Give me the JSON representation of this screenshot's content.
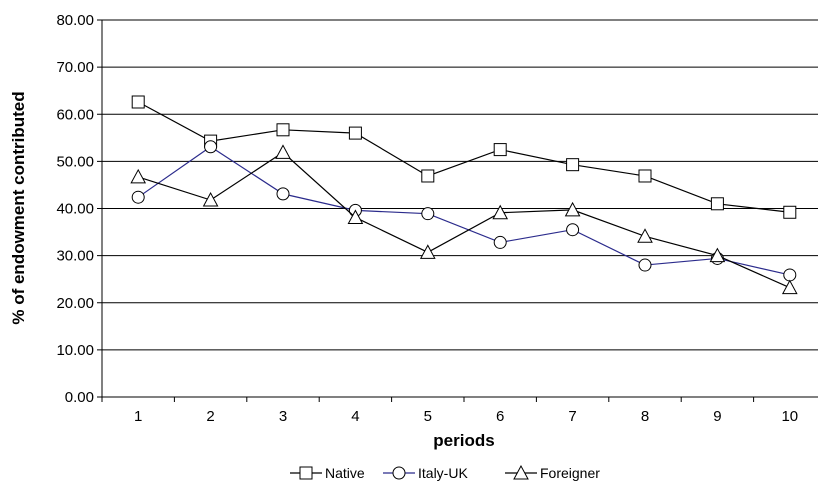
{
  "chart_data": {
    "type": "line",
    "title": "",
    "xlabel": "periods",
    "ylabel": "% of endowment contributed",
    "categories": [
      "1",
      "2",
      "3",
      "4",
      "5",
      "6",
      "7",
      "8",
      "9",
      "10"
    ],
    "ylim": [
      0,
      80
    ],
    "yticks": [
      "0.00",
      "10.00",
      "20.00",
      "30.00",
      "40.00",
      "50.00",
      "60.00",
      "70.00",
      "80.00"
    ],
    "grid": true,
    "legend_position": "bottom",
    "series": [
      {
        "name": "Native",
        "marker": "square",
        "color": "#000000",
        "values": [
          62.6,
          54.3,
          56.7,
          56.0,
          46.9,
          52.5,
          49.3,
          46.9,
          41.0,
          39.2
        ]
      },
      {
        "name": "Italy-UK",
        "marker": "circle",
        "color": "#2b2b8c",
        "values": [
          42.4,
          53.1,
          43.1,
          39.6,
          38.9,
          32.8,
          35.5,
          28.0,
          29.4,
          25.9
        ]
      },
      {
        "name": "Foreigner",
        "marker": "triangle",
        "color": "#000000",
        "values": [
          46.7,
          41.8,
          51.9,
          38.1,
          30.7,
          39.1,
          39.7,
          34.1,
          30.0,
          23.2
        ]
      }
    ]
  }
}
